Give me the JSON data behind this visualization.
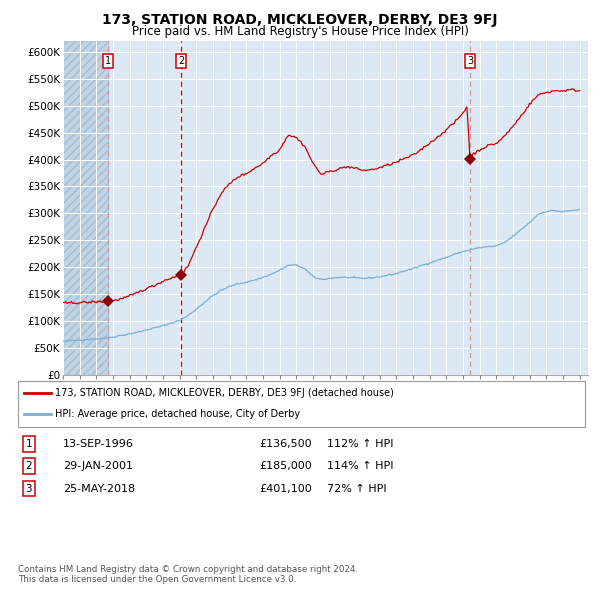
{
  "title": "173, STATION ROAD, MICKLEOVER, DERBY, DE3 9FJ",
  "subtitle": "Price paid vs. HM Land Registry's House Price Index (HPI)",
  "legend_line1": "173, STATION ROAD, MICKLEOVER, DERBY, DE3 9FJ (detached house)",
  "legend_line2": "HPI: Average price, detached house, City of Derby",
  "sale_labels": [
    "1",
    "2",
    "3"
  ],
  "sale_hpi_pct": [
    "112% ↑ HPI",
    "114% ↑ HPI",
    "72% ↑ HPI"
  ],
  "sale_date_strs": [
    "13-SEP-1996",
    "29-JAN-2001",
    "25-MAY-2018"
  ],
  "sale_price_strs": [
    "£136,500",
    "£185,000",
    "£401,100"
  ],
  "sale_prices": [
    136500,
    185000,
    401100
  ],
  "sale_years": [
    1996.708,
    2001.083,
    2018.417
  ],
  "ylim": [
    0,
    620000
  ],
  "yticks": [
    0,
    50000,
    100000,
    150000,
    200000,
    250000,
    300000,
    350000,
    400000,
    450000,
    500000,
    550000,
    600000
  ],
  "ytick_labels": [
    "£0",
    "£50K",
    "£100K",
    "£150K",
    "£200K",
    "£250K",
    "£300K",
    "£350K",
    "£400K",
    "£450K",
    "£500K",
    "£550K",
    "£600K"
  ],
  "hpi_color": "#7bafd4",
  "price_color": "#cc0000",
  "marker_color": "#8b0000",
  "vline_color": "#cc9999",
  "vline2_color": "#cc0000",
  "plot_bg": "#dce9f5",
  "hatch_bg": "#c0d4e8",
  "grid_color": "#ffffff",
  "copyright_text": "Contains HM Land Registry data © Crown copyright and database right 2024.\nThis data is licensed under the Open Government Licence v3.0.",
  "title_fontsize": 10,
  "subtitle_fontsize": 8.5
}
